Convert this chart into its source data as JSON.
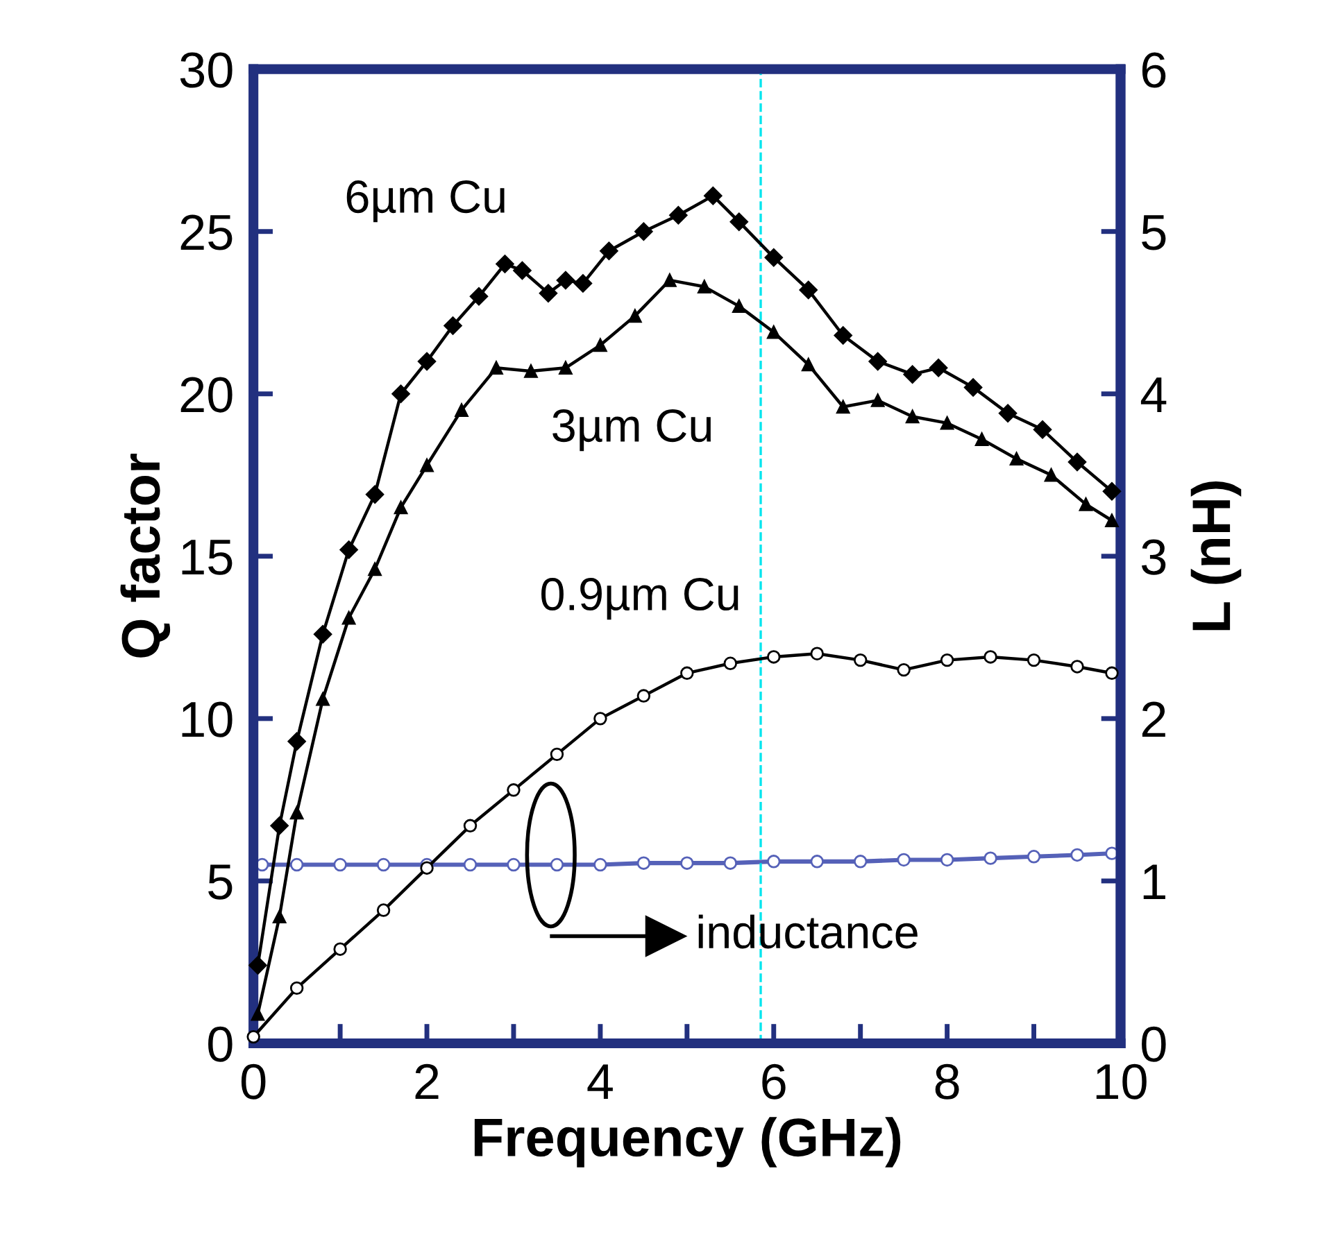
{
  "chart_data": {
    "type": "line",
    "xlabel": "Frequency (GHz)",
    "ylabel": "Q factor",
    "y2label": "L (nH)",
    "xlim": [
      0,
      10
    ],
    "xticks": [
      0,
      {
        "value": 1,
        "label": null
      },
      2,
      {
        "value": 3,
        "label": null
      },
      4,
      {
        "value": 5,
        "label": null
      },
      6,
      {
        "value": 7,
        "label": null
      },
      8,
      {
        "value": 9,
        "label": null
      },
      10
    ],
    "ylim": [
      0,
      30
    ],
    "yticks": [
      0,
      5,
      10,
      15,
      20,
      25,
      30
    ],
    "y2lim": [
      0,
      6
    ],
    "y2ticks": [
      0,
      1,
      2,
      3,
      4,
      5,
      6
    ],
    "grid": false,
    "legend": false,
    "series": [
      {
        "color": "#000000",
        "marker": "diamond",
        "x": [
          0.05,
          0.3,
          0.5,
          0.8,
          1.1,
          1.4,
          1.7,
          2.0,
          2.3,
          2.6,
          2.9,
          3.1,
          3.4,
          3.6,
          3.8,
          4.1,
          4.5,
          4.9,
          5.3,
          5.6,
          6.0,
          6.4,
          6.8,
          7.2,
          7.6,
          7.9,
          8.3,
          8.7,
          9.1,
          9.5,
          9.9
        ],
        "values": [
          2.4,
          6.7,
          9.3,
          12.6,
          15.2,
          16.9,
          20.0,
          21.0,
          22.1,
          23.0,
          24.0,
          23.8,
          23.1,
          23.5,
          23.4,
          24.4,
          25.0,
          25.5,
          26.1,
          25.3,
          24.2,
          23.2,
          21.8,
          21.0,
          20.6,
          20.8,
          20.2,
          19.4,
          18.9,
          17.9,
          17.0
        ]
      },
      {
        "color": "#000000",
        "marker": "triangle",
        "x": [
          0.05,
          0.3,
          0.5,
          0.8,
          1.1,
          1.4,
          1.7,
          2.0,
          2.4,
          2.8,
          3.2,
          3.6,
          4.0,
          4.4,
          4.8,
          5.2,
          5.6,
          6.0,
          6.4,
          6.8,
          7.2,
          7.6,
          8.0,
          8.4,
          8.8,
          9.2,
          9.6,
          9.9
        ],
        "values": [
          0.9,
          3.9,
          7.1,
          10.6,
          13.1,
          14.6,
          16.5,
          17.8,
          19.5,
          20.8,
          20.7,
          20.8,
          21.5,
          22.4,
          23.5,
          23.3,
          22.7,
          21.9,
          20.9,
          19.6,
          19.8,
          19.3,
          19.1,
          18.6,
          18.0,
          17.5,
          16.6,
          16.1
        ]
      },
      {
        "color": "#000000",
        "marker": "circle",
        "x": [
          0.0,
          0.5,
          1.0,
          1.5,
          2.0,
          2.5,
          3.0,
          3.5,
          4.0,
          4.5,
          5.0,
          5.5,
          6.0,
          6.5,
          7.0,
          7.5,
          8.0,
          8.5,
          9.0,
          9.5,
          9.9
        ],
        "values": [
          0.2,
          1.7,
          2.9,
          4.1,
          5.4,
          6.7,
          7.8,
          8.9,
          10.0,
          10.7,
          11.4,
          11.7,
          11.9,
          12.0,
          11.8,
          11.5,
          11.8,
          11.9,
          11.8,
          11.6,
          11.4
        ]
      },
      {
        "color": "#5561b8",
        "marker": "circle",
        "axis": "y2",
        "x": [
          0.1,
          0.5,
          1.0,
          1.5,
          2.0,
          2.5,
          3.0,
          3.5,
          4.0,
          4.5,
          5.0,
          5.5,
          6.0,
          6.5,
          7.0,
          7.5,
          8.0,
          8.5,
          9.0,
          9.5,
          9.9
        ],
        "values": [
          1.1,
          1.1,
          1.1,
          1.1,
          1.1,
          1.1,
          1.1,
          1.1,
          1.1,
          1.11,
          1.11,
          1.11,
          1.12,
          1.12,
          1.12,
          1.13,
          1.13,
          1.14,
          1.15,
          1.16,
          1.17
        ]
      }
    ],
    "ref_lines": [
      {
        "axis": "x",
        "value": 5.85,
        "color": "#00e5ee",
        "line_style": "dashed"
      }
    ],
    "annotations": [
      "6µm Cu",
      "3µm Cu",
      "0.9µm Cu",
      "inductance"
    ]
  }
}
